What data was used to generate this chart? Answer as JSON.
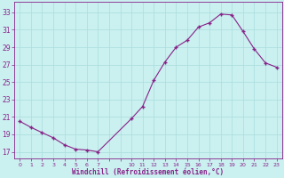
{
  "x": [
    0,
    1,
    2,
    3,
    4,
    5,
    6,
    7,
    10,
    11,
    12,
    13,
    14,
    15,
    16,
    17,
    18,
    19,
    20,
    21,
    22,
    23
  ],
  "y": [
    20.5,
    19.8,
    19.2,
    18.6,
    17.8,
    17.3,
    17.2,
    17.0,
    20.8,
    22.2,
    25.2,
    27.3,
    29.0,
    29.8,
    31.3,
    31.8,
    32.8,
    32.7,
    30.8,
    28.8,
    27.2,
    26.7
  ],
  "line_color": "#882288",
  "marker_color": "#882288",
  "bg_color": "#caf0f0",
  "grid_color": "#aadddd",
  "xlabel": "Windchill (Refroidissement éolien,°C)",
  "xlabel_color": "#882288",
  "tick_color": "#882288",
  "yticks": [
    17,
    19,
    21,
    23,
    25,
    27,
    29,
    31,
    33
  ],
  "ylim": [
    16.2,
    34.2
  ],
  "xlim": [
    -0.5,
    23.5
  ]
}
